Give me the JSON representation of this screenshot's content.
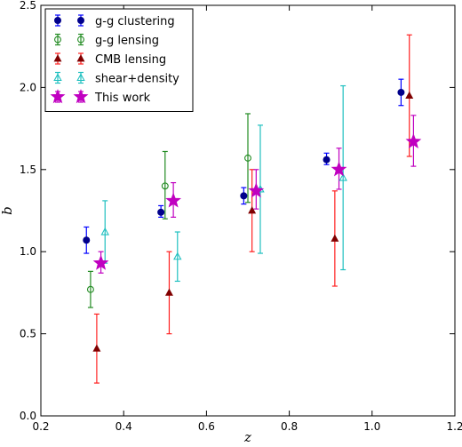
{
  "chart_data": {
    "type": "scatter",
    "title": "",
    "xlabel": "z",
    "ylabel": "b",
    "xlim": [
      0.2,
      1.2
    ],
    "ylim": [
      0.0,
      2.5
    ],
    "xticks": [
      0.2,
      0.4,
      0.6,
      0.8,
      1.0,
      1.2
    ],
    "yticks": [
      0.0,
      0.5,
      1.0,
      1.5,
      2.0,
      2.5
    ],
    "xtick_labels": [
      "0.2",
      "0.4",
      "0.6",
      "0.8",
      "1.0",
      "1.2"
    ],
    "ytick_labels": [
      "0.0",
      "0.5",
      "1.0",
      "1.5",
      "2.0",
      "2.5"
    ],
    "grid": false,
    "legend_position": "top-left",
    "series": [
      {
        "name": "g-g clustering",
        "marker": "filled-circle",
        "marker_color": "#00008b",
        "err_color": "#0000ff",
        "points": [
          {
            "x": 0.31,
            "y": 1.07,
            "ylow": 0.99,
            "yhigh": 1.15
          },
          {
            "x": 0.49,
            "y": 1.24,
            "ylow": 1.21,
            "yhigh": 1.28
          },
          {
            "x": 0.69,
            "y": 1.34,
            "ylow": 1.29,
            "yhigh": 1.39
          },
          {
            "x": 0.89,
            "y": 1.56,
            "ylow": 1.53,
            "yhigh": 1.6
          },
          {
            "x": 1.07,
            "y": 1.97,
            "ylow": 1.89,
            "yhigh": 2.05
          }
        ]
      },
      {
        "name": "g-g lensing",
        "marker": "open-circle",
        "marker_color": "#228b22",
        "err_color": "#228b22",
        "points": [
          {
            "x": 0.32,
            "y": 0.77,
            "ylow": 0.66,
            "yhigh": 0.88
          },
          {
            "x": 0.5,
            "y": 1.4,
            "ylow": 1.2,
            "yhigh": 1.61
          },
          {
            "x": 0.7,
            "y": 1.57,
            "ylow": 1.3,
            "yhigh": 1.84
          }
        ]
      },
      {
        "name": "CMB lensing",
        "marker": "filled-triangle",
        "marker_color": "#800000",
        "err_color": "#ff2020",
        "points": [
          {
            "x": 0.335,
            "y": 0.41,
            "ylow": 0.2,
            "yhigh": 0.62
          },
          {
            "x": 0.51,
            "y": 0.75,
            "ylow": 0.5,
            "yhigh": 1.0
          },
          {
            "x": 0.71,
            "y": 1.25,
            "ylow": 1.0,
            "yhigh": 1.5
          },
          {
            "x": 0.91,
            "y": 1.08,
            "ylow": 0.79,
            "yhigh": 1.37
          },
          {
            "x": 1.09,
            "y": 1.95,
            "ylow": 1.58,
            "yhigh": 2.32
          }
        ]
      },
      {
        "name": "shear+density",
        "marker": "open-triangle",
        "marker_color": "#20c0c0",
        "err_color": "#20c0c0",
        "points": [
          {
            "x": 0.355,
            "y": 1.12,
            "ylow": 0.93,
            "yhigh": 1.31
          },
          {
            "x": 0.53,
            "y": 0.97,
            "ylow": 0.82,
            "yhigh": 1.12
          },
          {
            "x": 0.73,
            "y": 1.38,
            "ylow": 0.99,
            "yhigh": 1.77
          },
          {
            "x": 0.93,
            "y": 1.45,
            "ylow": 0.89,
            "yhigh": 2.01
          }
        ]
      },
      {
        "name": "This work",
        "marker": "star",
        "marker_color": "#c000c0",
        "err_color": "#c000c0",
        "points": [
          {
            "x": 0.345,
            "y": 0.93,
            "ylow": 0.87,
            "yhigh": 1.0
          },
          {
            "x": 0.52,
            "y": 1.31,
            "ylow": 1.21,
            "yhigh": 1.42
          },
          {
            "x": 0.72,
            "y": 1.37,
            "ylow": 1.26,
            "yhigh": 1.5
          },
          {
            "x": 0.92,
            "y": 1.5,
            "ylow": 1.38,
            "yhigh": 1.63
          },
          {
            "x": 1.1,
            "y": 1.67,
            "ylow": 1.52,
            "yhigh": 1.83
          }
        ]
      }
    ]
  }
}
